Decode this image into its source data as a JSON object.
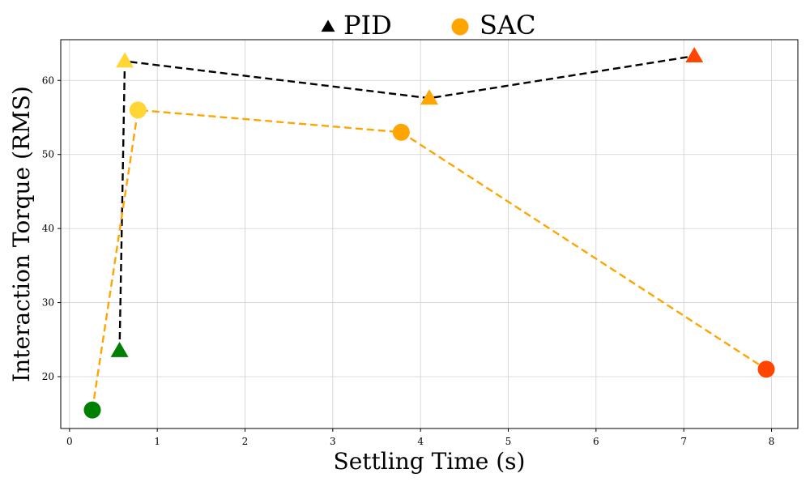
{
  "chart_data": {
    "type": "scatter",
    "title": "",
    "xlabel": "Settling Time (s)",
    "ylabel": "Interaction Torque (RMS)",
    "xlim": [
      -0.1,
      8.3
    ],
    "ylim": [
      13,
      65.5
    ],
    "xticks": [
      "0",
      "1",
      "2",
      "3",
      "4",
      "5",
      "6",
      "7",
      "8"
    ],
    "yticks": [
      "20",
      "30",
      "40",
      "50",
      "60"
    ],
    "grid": true,
    "legend_position": "top-center",
    "series": [
      {
        "name": "PID",
        "marker": "triangle",
        "line_color": "#000000",
        "points": [
          {
            "x": 0.57,
            "y": 23.5,
            "color": "#008000"
          },
          {
            "x": 0.63,
            "y": 62.6,
            "color": "#FFD633"
          },
          {
            "x": 4.1,
            "y": 57.6,
            "color": "#FFA500"
          },
          {
            "x": 7.12,
            "y": 63.3,
            "color": "#FF4500"
          }
        ]
      },
      {
        "name": "SAC",
        "marker": "circle",
        "line_color": "#FFA500",
        "points": [
          {
            "x": 0.26,
            "y": 15.5,
            "color": "#008000"
          },
          {
            "x": 0.78,
            "y": 56.0,
            "color": "#FFD633"
          },
          {
            "x": 3.78,
            "y": 53.0,
            "color": "#FFA500"
          },
          {
            "x": 7.94,
            "y": 21.0,
            "color": "#FF4500"
          }
        ]
      }
    ]
  },
  "legend": {
    "pid_label": "PID",
    "sac_label": "SAC",
    "pid_marker_color": "#000000",
    "sac_marker_color": "#FFA500"
  }
}
